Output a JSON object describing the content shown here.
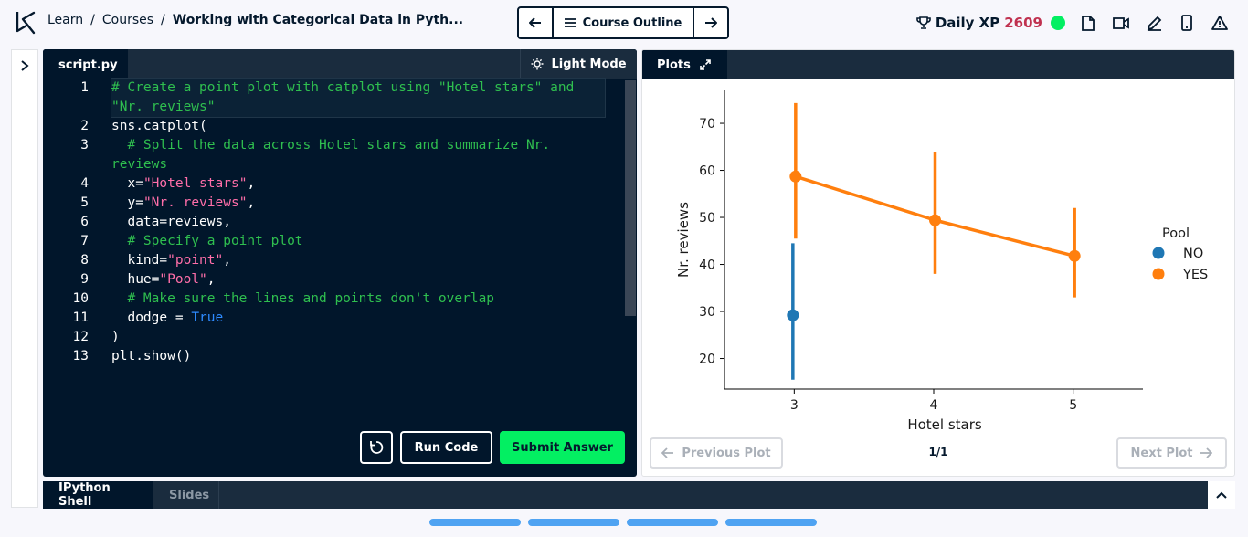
{
  "header": {
    "breadcrumbs": [
      "Learn",
      "Courses",
      "Working with Categorical Data in Pyth..."
    ],
    "separator": "/",
    "outline_label": "Course Outline",
    "xp_label": "Daily XP",
    "xp_value": "2609"
  },
  "editor": {
    "tab_label": "script.py",
    "light_mode_label": "Light Mode",
    "run_label": "Run Code",
    "submit_label": "Submit Answer",
    "lines": [
      {
        "n": "1",
        "parts": [
          {
            "t": "# Create a point plot with catplot using \"Hotel stars\" and \"Nr. reviews\"",
            "c": "com"
          }
        ]
      },
      {
        "n": "2",
        "parts": [
          {
            "t": "sns.catplot(",
            "c": ""
          }
        ]
      },
      {
        "n": "3",
        "parts": [
          {
            "t": "  # Split the data across Hotel stars and summarize Nr. reviews",
            "c": "com"
          }
        ]
      },
      {
        "n": "4",
        "parts": [
          {
            "t": "  x=",
            "c": ""
          },
          {
            "t": "\"Hotel stars\"",
            "c": "str"
          },
          {
            "t": ",",
            "c": ""
          }
        ]
      },
      {
        "n": "5",
        "parts": [
          {
            "t": "  y=",
            "c": ""
          },
          {
            "t": "\"Nr. reviews\"",
            "c": "str"
          },
          {
            "t": ",",
            "c": ""
          }
        ]
      },
      {
        "n": "6",
        "parts": [
          {
            "t": "  data=reviews,",
            "c": ""
          }
        ]
      },
      {
        "n": "7",
        "parts": [
          {
            "t": "  # Specify a point plot",
            "c": "com"
          }
        ]
      },
      {
        "n": "8",
        "parts": [
          {
            "t": "  kind=",
            "c": ""
          },
          {
            "t": "\"point\"",
            "c": "str"
          },
          {
            "t": ",",
            "c": ""
          }
        ]
      },
      {
        "n": "9",
        "parts": [
          {
            "t": "  hue=",
            "c": ""
          },
          {
            "t": "\"Pool\"",
            "c": "str"
          },
          {
            "t": ",",
            "c": ""
          }
        ]
      },
      {
        "n": "10",
        "parts": [
          {
            "t": "  # Make sure the lines and points don't overlap",
            "c": "com"
          }
        ]
      },
      {
        "n": "11",
        "parts": [
          {
            "t": "  dodge = ",
            "c": ""
          },
          {
            "t": "True",
            "c": "kw"
          }
        ]
      },
      {
        "n": "12",
        "parts": [
          {
            "t": ")",
            "c": ""
          }
        ]
      },
      {
        "n": "13",
        "parts": [
          {
            "t": "plt.show()",
            "c": ""
          }
        ]
      }
    ]
  },
  "plots": {
    "tab_label": "Plots",
    "prev_label": "Previous Plot",
    "next_label": "Next Plot",
    "counter": "1/1"
  },
  "shell": {
    "tabs": [
      "IPython Shell",
      "Slides"
    ]
  },
  "colors": {
    "no": "#1f77b4",
    "yes": "#ff7f0e",
    "accent_green": "#03ef62",
    "xp": "#c0314f"
  },
  "chart_data": {
    "type": "line",
    "xlabel": "Hotel stars",
    "ylabel": "Nr. reviews",
    "categories": [
      "3",
      "4",
      "5"
    ],
    "yticks": [
      20,
      30,
      40,
      50,
      60,
      70
    ],
    "ylim": [
      13.5,
      77
    ],
    "legend_title": "Pool",
    "legend_position": "right",
    "grid": false,
    "series": [
      {
        "name": "NO",
        "color": "#1f77b4",
        "values": [
          29.2,
          null,
          null
        ],
        "ci_low": [
          15.5,
          null,
          null
        ],
        "ci_high": [
          44.5,
          null,
          null
        ]
      },
      {
        "name": "YES",
        "color": "#ff7f0e",
        "values": [
          58.7,
          49.4,
          41.8
        ],
        "ci_low": [
          45.5,
          38.0,
          33.0
        ],
        "ci_high": [
          74.3,
          64.0,
          52.0
        ]
      }
    ]
  }
}
